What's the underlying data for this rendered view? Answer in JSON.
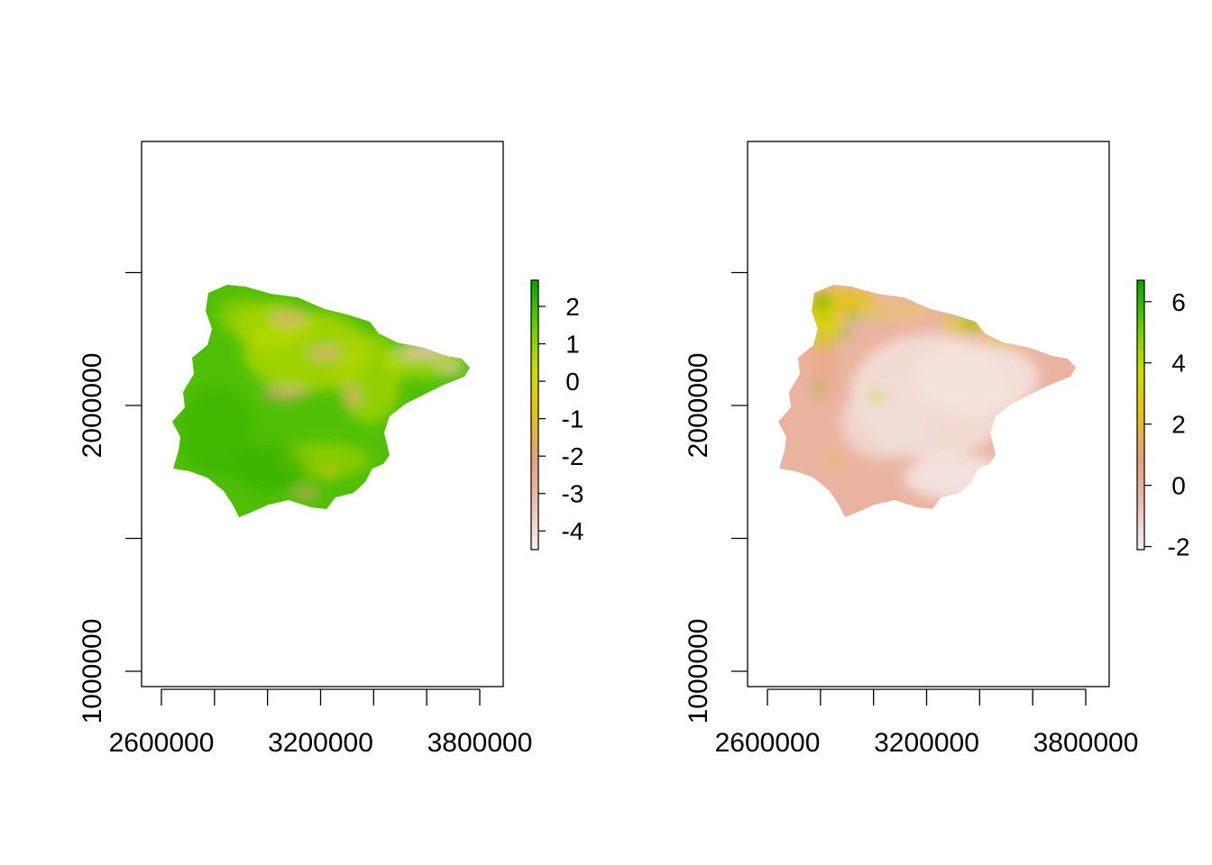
{
  "panels": [
    {
      "x_ticks": [
        "2600000",
        "3200000",
        "3800000"
      ],
      "y_ticks": [
        "1000000",
        "2000000"
      ],
      "legend": {
        "ticks": [
          "2",
          "1",
          "0",
          "-1",
          "-2",
          "-3",
          "-4"
        ],
        "min": -4.5,
        "max": 2.7
      },
      "colors": [
        "#f2f2f2",
        "#ecc0b5",
        "#e7a17b",
        "#e4c21d",
        "#c8df00",
        "#66cc00",
        "#00a600"
      ],
      "base_color": "#4fbf05"
    },
    {
      "x_ticks": [
        "2600000",
        "3200000",
        "3800000"
      ],
      "y_ticks": [
        "1000000",
        "2000000"
      ],
      "legend": {
        "ticks": [
          "6",
          "4",
          "2",
          "0",
          "-2"
        ],
        "min": -2.1,
        "max": 6.7
      },
      "colors": [
        "#f2f2f2",
        "#ecc0b5",
        "#e7a17b",
        "#e4c21d",
        "#c8df00",
        "#66cc00",
        "#00a600"
      ],
      "base_color": "#eab3a0"
    }
  ],
  "x_axis_values": [
    2600000,
    2800000,
    3000000,
    3200000,
    3400000,
    3600000,
    3800000
  ],
  "y_axis_values": [
    1000000,
    1500000,
    2000000,
    2500000
  ],
  "map_extent": {
    "xlim": [
      2530000,
      3890000
    ],
    "ylim": [
      940000,
      2970000
    ]
  }
}
